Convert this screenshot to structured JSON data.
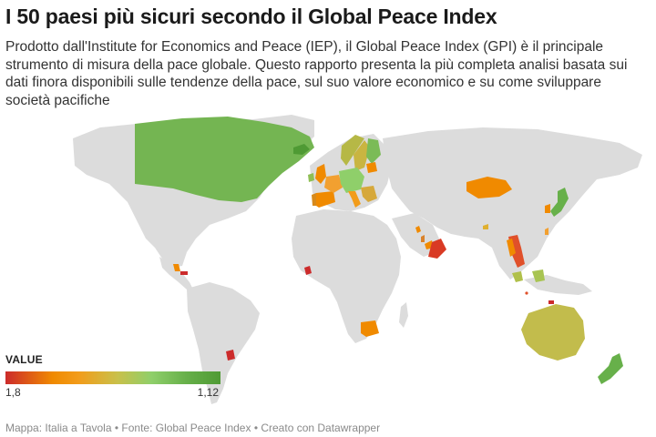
{
  "title": "I 50 paesi più sicuri secondo il Global Peace Index",
  "description": "Prodotto dall'Institute for Economics and Peace (IEP), il Global Peace Index (GPI) è il principale strumento di misura della pace globale. Questo rapporto presenta la più completa analisi basata sui dati finora disponibili sulle tendenze della pace, sul suo valore economico e su come sviluppare società pacifiche",
  "legend": {
    "title": "VALUE",
    "min_label": "1,8",
    "max_label": "1,12"
  },
  "footer": "Mappa: Italia a Tavola • Fonte: Global Peace Index • Creato con Datawrapper",
  "colors": {
    "land": "#dcdcdc",
    "high_peace": "#67b04a",
    "mid": "#c2bc4c",
    "orange": "#f08a00",
    "red": "#cc2b2b"
  }
}
